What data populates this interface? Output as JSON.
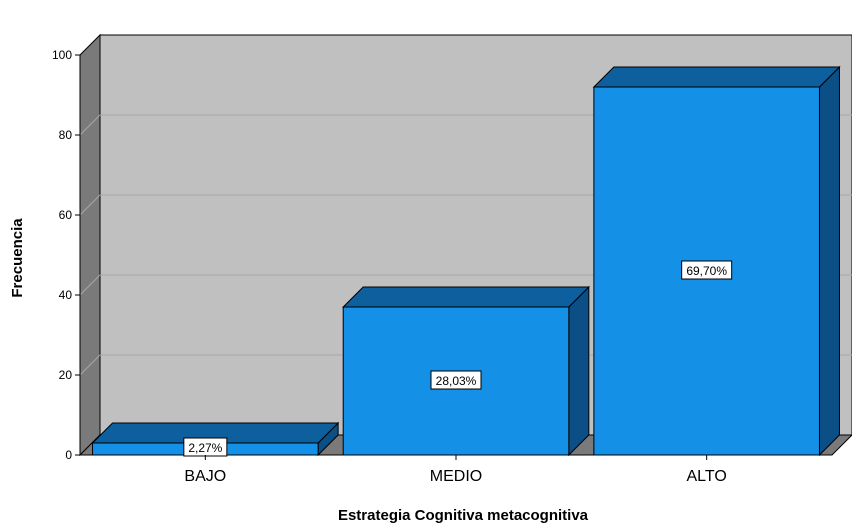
{
  "chart_data": {
    "type": "bar",
    "style": "3d",
    "categories": [
      "BAJO",
      "MEDIO",
      "ALTO"
    ],
    "values": [
      3,
      37,
      92
    ],
    "data_labels": [
      "2,27%",
      "28,03%",
      "69,70%"
    ],
    "xlabel": "Estrategia Cognitiva metacognitiva",
    "ylabel": "Frecuencia",
    "ylim": [
      0,
      100
    ],
    "yticks": [
      0,
      20,
      40,
      60,
      80,
      100
    ],
    "grid": true,
    "legend": "none"
  },
  "colors": {
    "bar_front": "#1490e6",
    "bar_top": "#0d5f9e",
    "bar_side": "#0b4f86",
    "wall_back": "#c0c0c0",
    "wall_side": "#7a7a7a",
    "floor": "#7a7a7a",
    "gridline": "#a8a8a8"
  }
}
